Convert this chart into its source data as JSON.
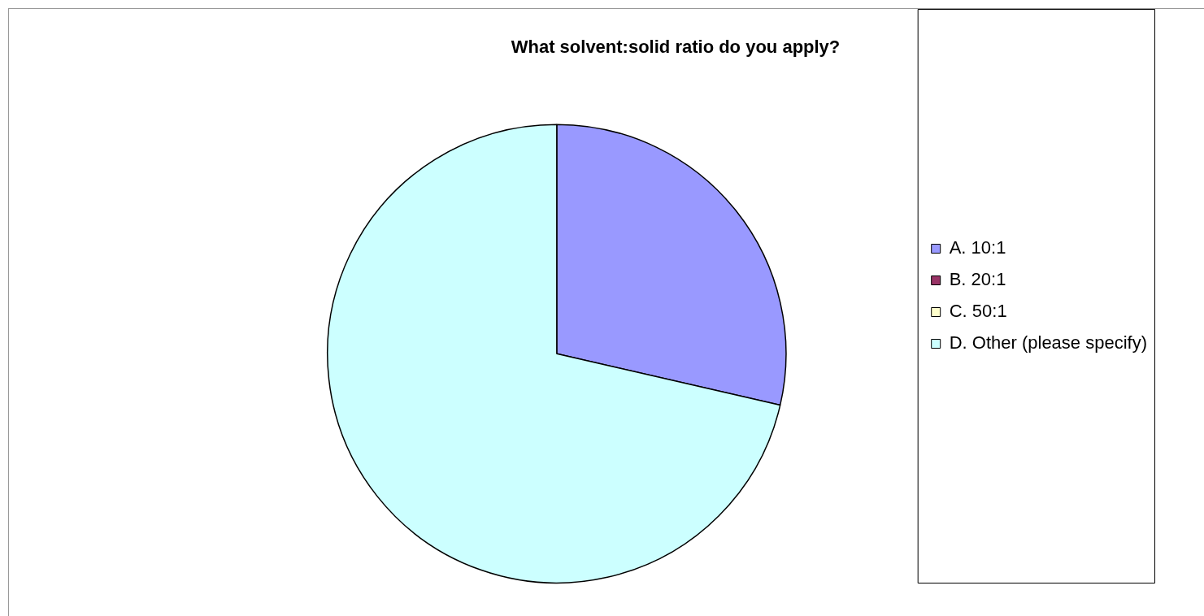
{
  "chart_data": {
    "type": "pie",
    "title": "What solvent:solid ratio do you apply?",
    "categories": [
      "A. 10:1",
      "B. 20:1",
      "C. 50:1",
      "D. Other (please specify)"
    ],
    "values": [
      28.6,
      0,
      0,
      71.4
    ],
    "colors": [
      "#9999ff",
      "#993366",
      "#ffffcc",
      "#ccffff"
    ],
    "legend": "right"
  }
}
